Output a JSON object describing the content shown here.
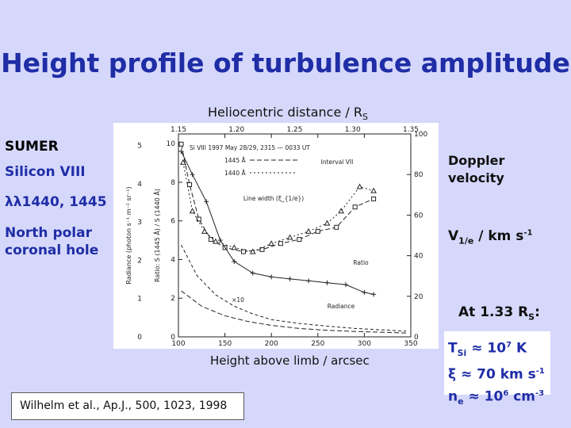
{
  "slide": {
    "title": "Height profile of turbulence amplitude",
    "top_axis_label": "Heliocentric distance / R",
    "top_axis_subscript": "S",
    "bottom_axis_label": "Height above limb / arcsec",
    "left": {
      "instrument": "SUMER",
      "ion": "Silicon VIII",
      "lines": "λλ1440, 1445",
      "region": "North polar coronal hole"
    },
    "right": {
      "doppler": "Doppler velocity",
      "v_symbol": "V",
      "v_sub": "1/e",
      "v_units": " / km s",
      "v_exp": "-1",
      "at_prefix": "At 1.33 R",
      "at_sub": "S",
      "at_suffix": ":"
    },
    "params": {
      "t_symbol": "T",
      "t_sub": "Si",
      "t_value": " ≈ 10",
      "t_exp": "7",
      "t_unit": " K",
      "xi_text": "ξ ≈ 70 km s",
      "xi_exp": "-1",
      "ne_symbol": "n",
      "ne_sub": "e",
      "ne_value": " ≈ 10",
      "ne_exp": "6",
      "ne_unit": " cm",
      "ne_unit_exp": "-3"
    },
    "citation": {
      "prefix": "Wilhelm et al., Ap.J., ",
      "volume": "500",
      "suffix": ", 1023, 1998"
    }
  },
  "chart_data": {
    "type": "line",
    "x_axis": {
      "label": "",
      "range": [
        100,
        350
      ],
      "ticks": [
        "100",
        "150",
        "200",
        "250",
        "300",
        "350"
      ]
    },
    "top_axis": {
      "range": [
        1.15,
        1.35
      ],
      "ticks": [
        "1.15",
        "1.20",
        "1.25",
        "1.30",
        "1.35"
      ]
    },
    "y_left_outer": {
      "label": "Radiance (photon s⁻¹ m⁻² sr⁻¹)",
      "ticks": [
        "0",
        "1",
        "2",
        "3",
        "4",
        "5"
      ]
    },
    "y_left_inner": {
      "label": "Ratio: S (1445 Å) / S (1440 Å)",
      "ticks": [
        "0",
        "2",
        "4",
        "6",
        "8",
        "10"
      ]
    },
    "y_right": {
      "label": "",
      "range": [
        0,
        100
      ],
      "ticks": [
        "0",
        "20",
        "40",
        "60",
        "80",
        "100"
      ]
    },
    "legend": {
      "header": "Si VIII  1997 May 28/29, 2315 — 0033 UT",
      "entries": [
        "1445 Å",
        "1440 Å"
      ],
      "interval": "Interval VII"
    },
    "annotations": [
      "Line width (ξ_{1/e})",
      "Ratio",
      "Radiance",
      "×10"
    ],
    "series": [
      {
        "name": "1445 Å",
        "x": [
          103,
          112,
          122,
          135,
          150,
          170,
          190,
          210,
          230,
          250,
          270,
          290,
          310
        ],
        "y": [
          95,
          75,
          58,
          48,
          44,
          42,
          43,
          46,
          48,
          52,
          54,
          64,
          68
        ]
      },
      {
        "name": "1440 Å",
        "x": [
          105,
          115,
          128,
          140,
          160,
          180,
          200,
          220,
          240,
          260,
          275,
          295,
          310
        ],
        "y": [
          86,
          62,
          52,
          47,
          44,
          42,
          46,
          49,
          52,
          56,
          62,
          74,
          72
        ]
      },
      {
        "name": "Ratio",
        "x": [
          103,
          115,
          130,
          145,
          160,
          180,
          200,
          220,
          240,
          260,
          280,
          300,
          310
        ],
        "y": [
          9.6,
          8.4,
          7.0,
          5.0,
          3.9,
          3.3,
          3.1,
          3.0,
          2.9,
          2.8,
          2.7,
          2.3,
          2.2
        ]
      },
      {
        "name": "Radiance",
        "x": [
          103,
          120,
          140,
          160,
          180,
          200,
          230,
          260,
          290,
          320,
          345
        ],
        "y": [
          2.4,
          1.6,
          1.1,
          0.8,
          0.6,
          0.45,
          0.35,
          0.28,
          0.22,
          0.18,
          0.15
        ]
      },
      {
        "name": "×10",
        "x": [
          103,
          125,
          150,
          175,
          200,
          230,
          260,
          290,
          320,
          345
        ],
        "y": [
          1.2,
          0.8,
          0.55,
          0.4,
          0.3,
          0.22,
          0.17,
          0.14,
          0.12,
          0.1
        ]
      }
    ]
  }
}
